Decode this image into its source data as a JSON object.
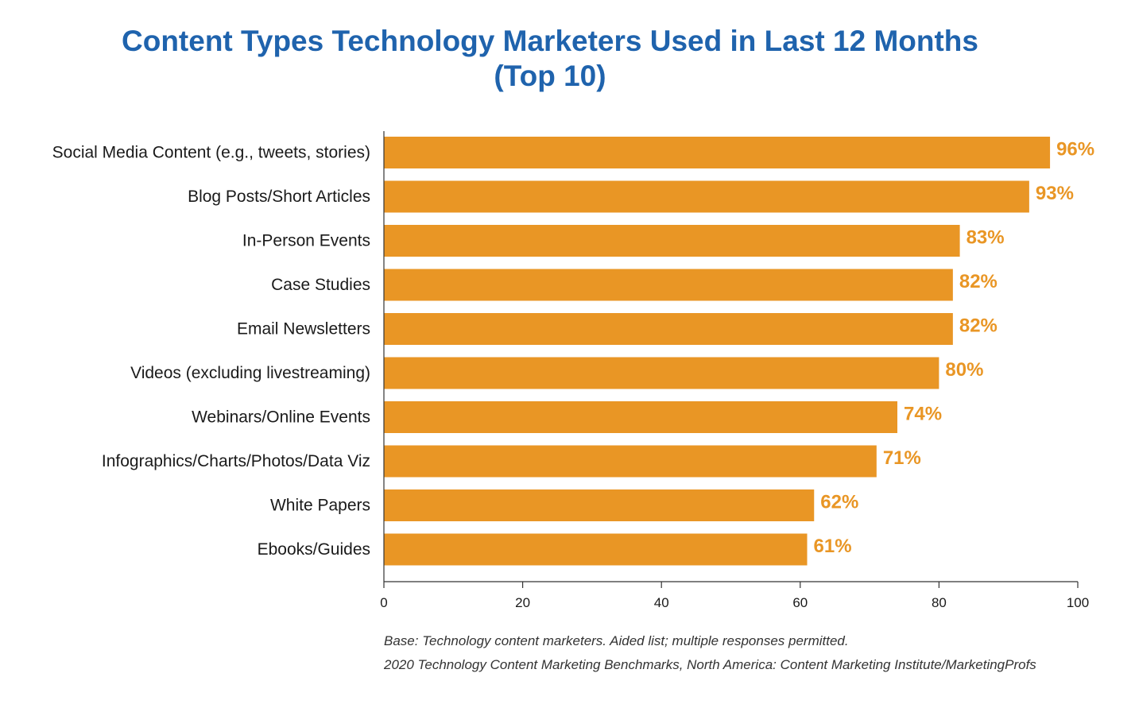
{
  "chart_data": {
    "type": "bar",
    "orientation": "horizontal",
    "title": [
      "Content Types Technology Marketers Used in Last 12 Months",
      "(Top 10)"
    ],
    "categories": [
      "Social Media Content (e.g., tweets, stories)",
      "Blog Posts/Short Articles",
      "In-Person Events",
      "Case Studies",
      "Email Newsletters",
      "Videos (excluding livestreaming)",
      "Webinars/Online Events",
      "Infographics/Charts/Photos/Data Viz",
      "White Papers",
      "Ebooks/Guides"
    ],
    "values": [
      96,
      93,
      83,
      82,
      82,
      80,
      74,
      71,
      62,
      61
    ],
    "value_labels": [
      "96%",
      "93%",
      "83%",
      "82%",
      "82%",
      "80%",
      "74%",
      "71%",
      "62%",
      "61%"
    ],
    "xlim": [
      0,
      100
    ],
    "xticks": [
      0,
      20,
      40,
      60,
      80,
      100
    ],
    "xlabel": "",
    "ylabel": "",
    "grid": false,
    "legend": "none",
    "bar_color": "#e99625",
    "value_label_color": "#e99625",
    "title_color": "#1f63ad"
  },
  "footnotes": {
    "base": "Base: Technology content marketers. Aided list; multiple responses permitted.",
    "source": "2020 Technology Content Marketing Benchmarks, North America: Content Marketing Institute/MarketingProfs"
  }
}
